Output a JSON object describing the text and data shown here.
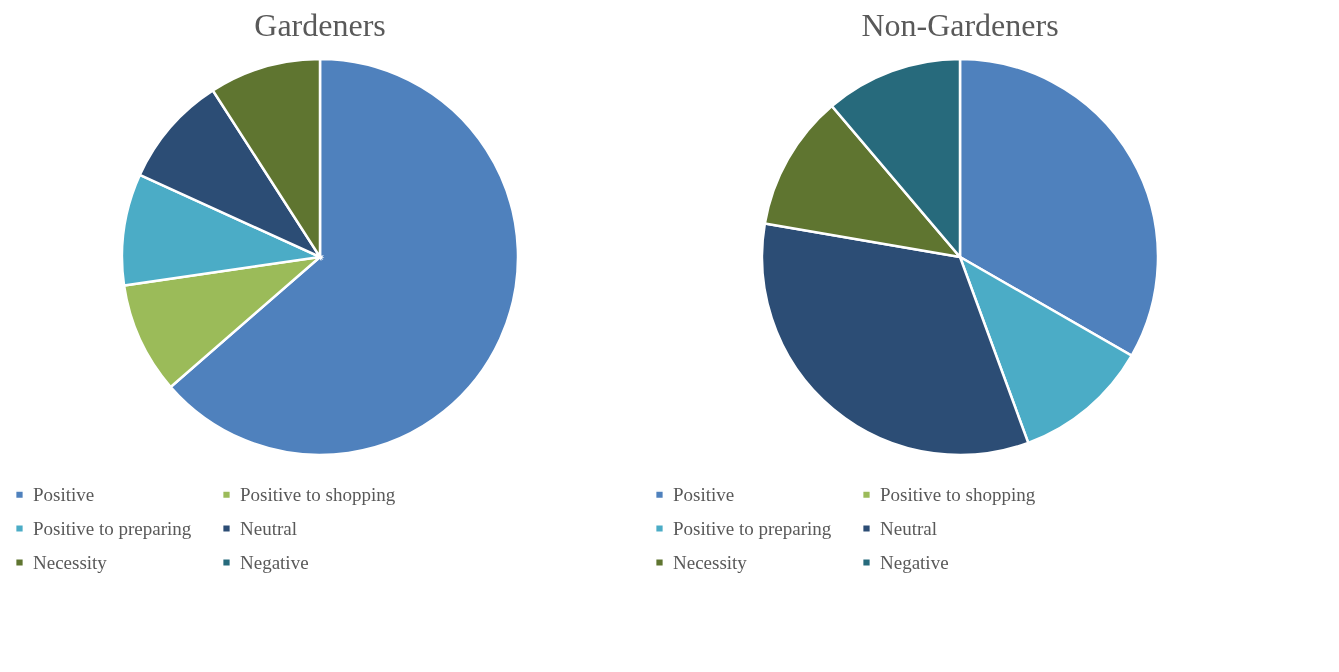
{
  "chart_data": [
    {
      "type": "pie",
      "title": "Gardeners",
      "categories": [
        "Positive",
        "Positive to shopping",
        "Positive to preparing",
        "Neutral",
        "Necessity",
        "Negative"
      ],
      "values": [
        63.6,
        9.1,
        9.1,
        9.1,
        9.1,
        0
      ],
      "colors": [
        "#4f81bd",
        "#9bbb59",
        "#4bacc6",
        "#2c4d75",
        "#5f7530",
        "#276a7c"
      ],
      "legend": "bottom"
    },
    {
      "type": "pie",
      "title": "Non-Gardeners",
      "categories": [
        "Positive",
        "Positive to shopping",
        "Positive to preparing",
        "Neutral",
        "Necessity",
        "Negative"
      ],
      "values": [
        33.3,
        0,
        11.1,
        33.3,
        11.1,
        11.2
      ],
      "colors": [
        "#4f81bd",
        "#9bbb59",
        "#4bacc6",
        "#2c4d75",
        "#5f7530",
        "#276a7c"
      ],
      "legend": "bottom"
    }
  ]
}
